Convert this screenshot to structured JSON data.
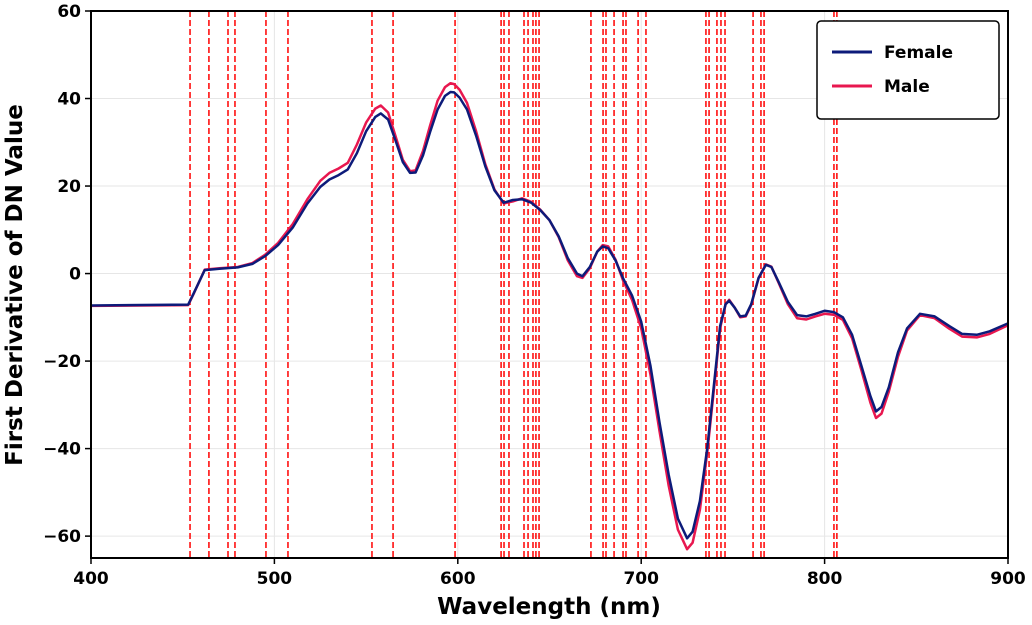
{
  "chart_data": {
    "type": "line",
    "title": "",
    "xlabel": "Wavelength (nm)",
    "ylabel": "First Derivative of DN Value",
    "xlim": [
      400,
      900
    ],
    "ylim": [
      -65,
      60
    ],
    "xticks": [
      400,
      500,
      600,
      700,
      800,
      900
    ],
    "yticks": [
      -60,
      -40,
      -20,
      0,
      20,
      40,
      60
    ],
    "xtick_labels": [
      "400",
      "500",
      "600",
      "700",
      "800",
      "900"
    ],
    "ytick_labels": [
      "−60",
      "−40",
      "−20",
      "0",
      "20",
      "40",
      "60"
    ],
    "grid": true,
    "legend_position": "top-right",
    "series": [
      {
        "name": "Female",
        "color": "#0d1b7a",
        "x": [
          400,
          453,
          456,
          462,
          470,
          480,
          488,
          495,
          502,
          510,
          518,
          525,
          530,
          535,
          540,
          545,
          550,
          555,
          558,
          562,
          566,
          570,
          574,
          577,
          581,
          585,
          589,
          593,
          596,
          598,
          601,
          605,
          610,
          615,
          620,
          625,
          630,
          635,
          640,
          645,
          650,
          655,
          660,
          665,
          668,
          672,
          676,
          679,
          682,
          686,
          690,
          695,
          700,
          705,
          710,
          715,
          720,
          725,
          728,
          732,
          736,
          740,
          743,
          746,
          748,
          751,
          754,
          757,
          760,
          764,
          768,
          771,
          775,
          780,
          785,
          790,
          795,
          800,
          805,
          810,
          815,
          820,
          825,
          828,
          831,
          835,
          840,
          845,
          852,
          860,
          868,
          875,
          883,
          890,
          900
        ],
        "y": [
          -7.3,
          -7.1,
          -4.5,
          0.8,
          1.1,
          1.4,
          2.2,
          4,
          6.5,
          10.5,
          16,
          19.8,
          21.5,
          22.5,
          23.8,
          27.5,
          32.5,
          35.8,
          36.6,
          35.2,
          30.5,
          25.5,
          23,
          23.1,
          27,
          32.5,
          37.5,
          40.6,
          41.5,
          41.4,
          40.2,
          37.5,
          31.5,
          24.5,
          19,
          16.2,
          16.8,
          17,
          16.2,
          14.5,
          12.2,
          8.5,
          3.5,
          0,
          -0.6,
          1.5,
          5,
          6.2,
          5.8,
          3,
          -1,
          -5,
          -11,
          -21,
          -34,
          -46,
          -56,
          -60.5,
          -59,
          -52,
          -40,
          -24,
          -12,
          -7,
          -6.2,
          -7.8,
          -9.8,
          -9.6,
          -7,
          -1,
          2,
          1.5,
          -2,
          -6.5,
          -9.5,
          -9.8,
          -9.2,
          -8.5,
          -8.8,
          -10,
          -14,
          -21,
          -28,
          -31.5,
          -30.5,
          -26,
          -18,
          -12.5,
          -9.2,
          -9.8,
          -12,
          -13.8,
          -14,
          -13.2,
          -11.4
        ]
      },
      {
        "name": "Male",
        "color": "#e8174f",
        "x": [
          400,
          453,
          456,
          462,
          470,
          480,
          488,
          495,
          502,
          510,
          518,
          525,
          530,
          535,
          540,
          545,
          550,
          555,
          558,
          562,
          566,
          570,
          574,
          577,
          581,
          585,
          589,
          593,
          596,
          598,
          601,
          605,
          610,
          615,
          620,
          625,
          630,
          635,
          640,
          645,
          650,
          655,
          660,
          665,
          668,
          672,
          676,
          679,
          682,
          686,
          690,
          695,
          700,
          705,
          710,
          715,
          720,
          725,
          728,
          732,
          736,
          740,
          743,
          746,
          748,
          751,
          754,
          757,
          760,
          764,
          768,
          771,
          775,
          780,
          785,
          790,
          795,
          800,
          805,
          810,
          815,
          820,
          825,
          828,
          831,
          835,
          840,
          845,
          852,
          860,
          868,
          875,
          883,
          890,
          900
        ],
        "y": [
          -7.4,
          -7.2,
          -4.6,
          0.9,
          1.2,
          1.5,
          2.4,
          4.3,
          7,
          11.3,
          17,
          21.2,
          23,
          24,
          25.3,
          29.5,
          34.5,
          37.7,
          38.4,
          36.8,
          31.5,
          26,
          23.4,
          23.6,
          28,
          34,
          39.5,
          42.6,
          43.5,
          43.3,
          42,
          39,
          32.5,
          25,
          19.2,
          16,
          16.5,
          17.2,
          16.4,
          14.6,
          12.2,
          8.3,
          3,
          -0.6,
          -1,
          1.2,
          5,
          6.5,
          6.2,
          3.2,
          -1.5,
          -6,
          -12.5,
          -23,
          -36,
          -48.5,
          -58.5,
          -63,
          -61.5,
          -54,
          -41,
          -25,
          -12.5,
          -7,
          -6,
          -7.8,
          -10,
          -9.8,
          -7.2,
          -1,
          2.1,
          1.6,
          -2.2,
          -7,
          -10.2,
          -10.5,
          -9.8,
          -9.2,
          -9.4,
          -10.6,
          -14.8,
          -22,
          -29.5,
          -33,
          -32,
          -27,
          -19,
          -13,
          -9.5,
          -10.2,
          -12.6,
          -14.4,
          -14.6,
          -13.8,
          -11.8
        ]
      }
    ],
    "vertical_markers": {
      "color": "#ff0000",
      "style": "dashed",
      "x": [
        454.0,
        464.3,
        474.7,
        478.5,
        495.4,
        507.4,
        553.2,
        564.7,
        598.5,
        623.6,
        625.2,
        627.9,
        636.1,
        638.3,
        641.0,
        642.6,
        644.3,
        672.6,
        679.2,
        680.8,
        685.2,
        690.1,
        691.7,
        698.3,
        702.6,
        735.3,
        737.0,
        741.3,
        743.5,
        745.7,
        761.0,
        765.3,
        767.0,
        805.1,
        806.7
      ]
    }
  }
}
